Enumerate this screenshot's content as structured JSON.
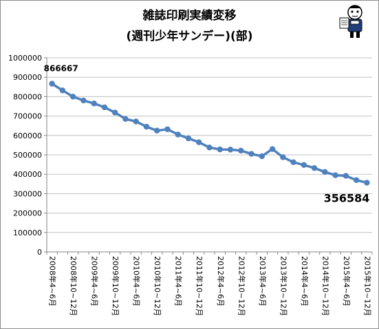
{
  "title_line1": "雑誌印刷実績変移",
  "title_line2": "(週刊少年サンデー)(部)",
  "mascot_icon": "cartoon-reader-icon",
  "colors": {
    "series": "#4f81bd",
    "grid": "#c0c0c0",
    "axis": "#868686"
  },
  "chart_data": {
    "type": "line",
    "title": "雑誌印刷実績変移 (週刊少年サンデー)(部)",
    "ylim": [
      0,
      1000000
    ],
    "ytick_step": 100000,
    "yticks": [
      "0",
      "100000",
      "200000",
      "300000",
      "400000",
      "500000",
      "600000",
      "700000",
      "800000",
      "900000",
      "1000000"
    ],
    "grid": true,
    "legend": "none",
    "x_tick_labels": [
      "2008年4~6月",
      "2008年10~12月",
      "2009年4~6月",
      "2009年10~12月",
      "2010年4~6月",
      "2010年10~12月",
      "2011年4~6月",
      "2011年10~12月",
      "2012年4~6月",
      "2012年10~12月",
      "2013年4~6月",
      "2013年10~12月",
      "2014年4~6月",
      "2014年10~12月",
      "2015年4~6月",
      "2015年10~12月"
    ],
    "series": [
      {
        "values": [
          866667,
          832000,
          800000,
          780000,
          765000,
          745000,
          718000,
          685000,
          672000,
          645000,
          625000,
          632000,
          605000,
          585000,
          565000,
          538000,
          528000,
          527000,
          522000,
          505000,
          493000,
          530000,
          488000,
          462000,
          448000,
          432000,
          412000,
          395000,
          392000,
          370000,
          356584
        ],
        "annotations": [
          {
            "index": 0,
            "label": "866667"
          },
          {
            "index": 30,
            "label": "356584"
          }
        ]
      }
    ]
  }
}
